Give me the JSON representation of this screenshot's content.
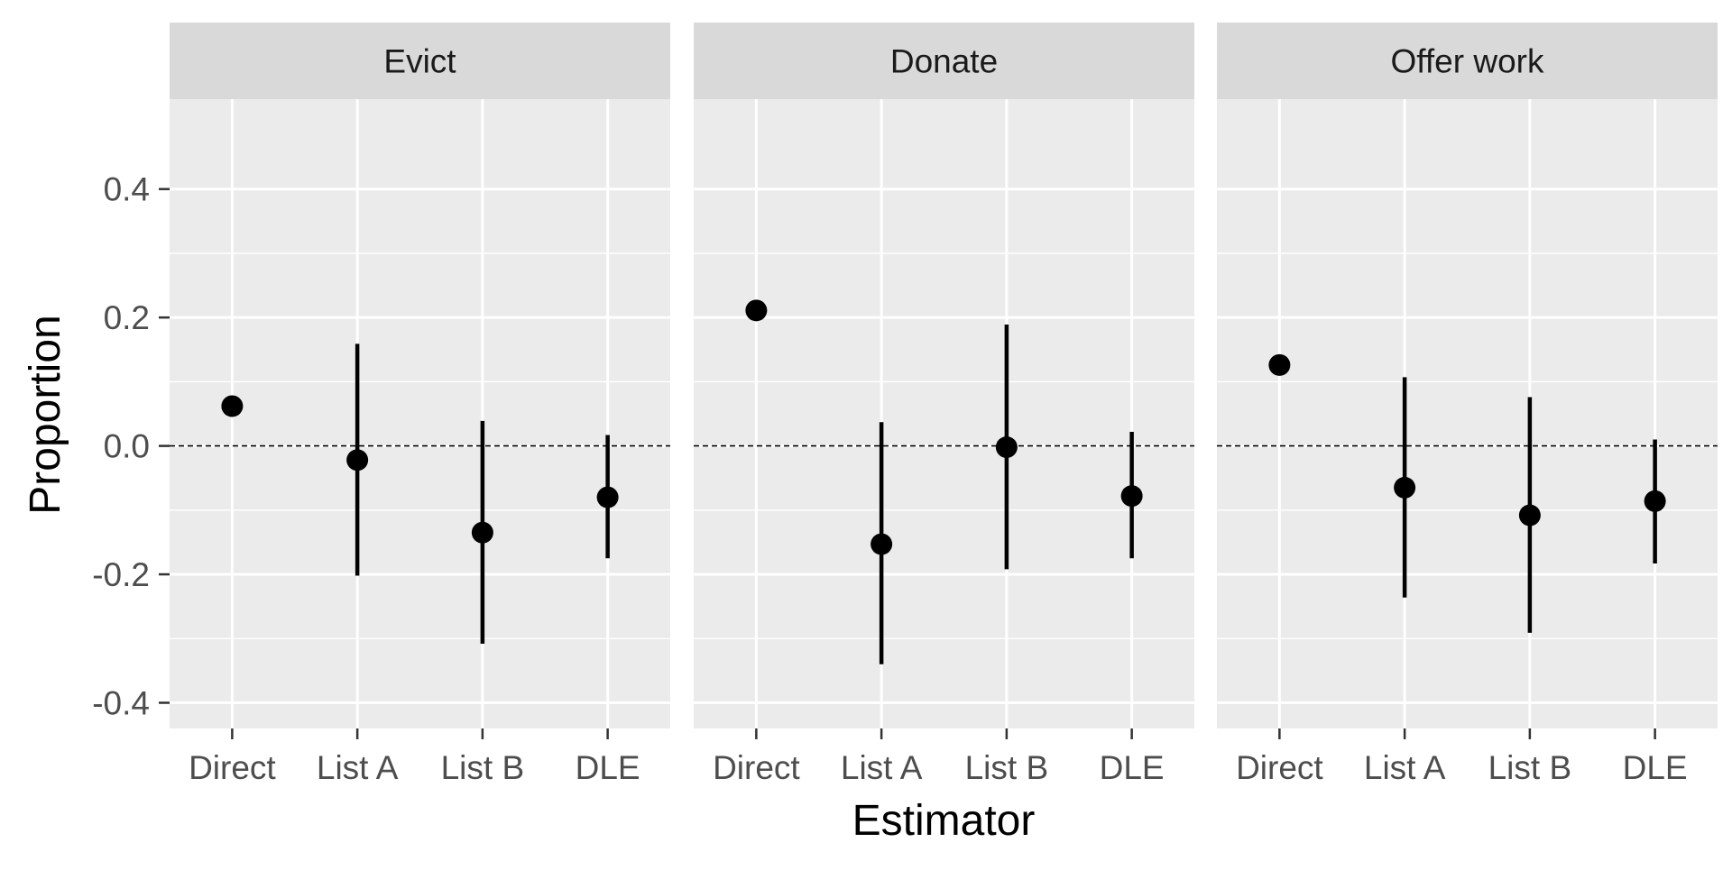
{
  "chart_data": {
    "type": "scatter",
    "subtype": "point-range-facets",
    "title": "",
    "xlabel": "Estimator",
    "ylabel": "Proportion",
    "ylim": [
      -0.44,
      0.54
    ],
    "yticks": [
      -0.4,
      -0.2,
      0.0,
      0.2,
      0.4
    ],
    "ytick_labels": [
      "-0.4",
      "-0.2",
      "0.0",
      "0.2",
      "0.4"
    ],
    "reference_line": 0.0,
    "grid": true,
    "categories": [
      "Direct",
      "List A",
      "List B",
      "DLE"
    ],
    "facets": [
      {
        "name": "Evict",
        "points": [
          {
            "x": "Direct",
            "y": 0.062,
            "lower": null,
            "upper": null
          },
          {
            "x": "List A",
            "y": -0.022,
            "lower": -0.202,
            "upper": 0.159
          },
          {
            "x": "List B",
            "y": -0.135,
            "lower": -0.308,
            "upper": 0.039
          },
          {
            "x": "DLE",
            "y": -0.08,
            "lower": -0.175,
            "upper": 0.017
          }
        ]
      },
      {
        "name": "Donate",
        "points": [
          {
            "x": "Direct",
            "y": 0.211,
            "lower": null,
            "upper": null
          },
          {
            "x": "List A",
            "y": -0.153,
            "lower": -0.34,
            "upper": 0.037
          },
          {
            "x": "List B",
            "y": -0.002,
            "lower": -0.192,
            "upper": 0.189
          },
          {
            "x": "DLE",
            "y": -0.078,
            "lower": -0.175,
            "upper": 0.022
          }
        ]
      },
      {
        "name": "Offer work",
        "points": [
          {
            "x": "Direct",
            "y": 0.126,
            "lower": null,
            "upper": null
          },
          {
            "x": "List A",
            "y": -0.065,
            "lower": -0.236,
            "upper": 0.107
          },
          {
            "x": "List B",
            "y": -0.108,
            "lower": -0.291,
            "upper": 0.076
          },
          {
            "x": "DLE",
            "y": -0.086,
            "lower": -0.183,
            "upper": 0.01
          }
        ]
      }
    ]
  }
}
